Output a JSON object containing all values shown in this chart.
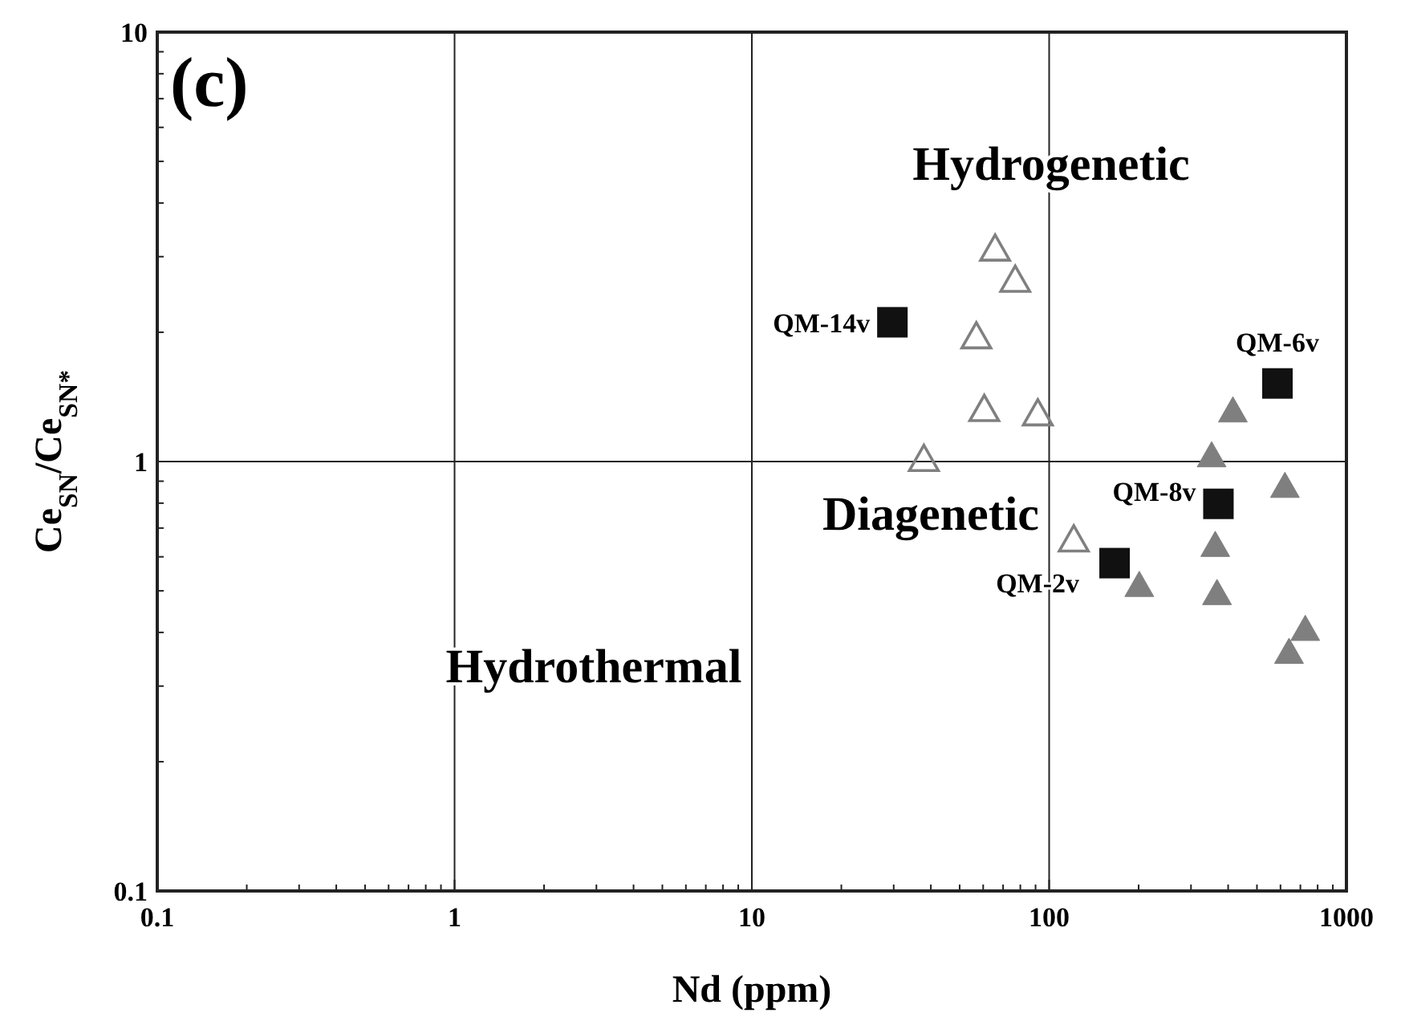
{
  "chart_data": {
    "type": "scatter",
    "title": "(c)",
    "xlabel": "Nd (ppm)",
    "ylabel": "Ce$_{SN}$/Ce$_{SN*}$",
    "log": "xy",
    "grid": true,
    "xlim": [
      0.1,
      1000
    ],
    "ylim": [
      0.1,
      10
    ],
    "xticks": [
      0.1,
      {
        "value": 0.2,
        "label": null
      },
      {
        "value": 0.3,
        "label": null
      },
      {
        "value": 0.4,
        "label": null
      },
      {
        "value": 0.5,
        "label": null
      },
      {
        "value": 0.6,
        "label": null
      },
      {
        "value": 0.7,
        "label": null
      },
      {
        "value": 0.8,
        "label": null
      },
      {
        "value": 0.9,
        "label": null
      },
      1,
      {
        "value": 2,
        "label": null
      },
      {
        "value": 3,
        "label": null
      },
      {
        "value": 4,
        "label": null
      },
      {
        "value": 5,
        "label": null
      },
      {
        "value": 6,
        "label": null
      },
      {
        "value": 7,
        "label": null
      },
      {
        "value": 8,
        "label": null
      },
      {
        "value": 9,
        "label": null
      },
      10,
      {
        "value": 20,
        "label": null
      },
      {
        "value": 30,
        "label": null
      },
      {
        "value": 40,
        "label": null
      },
      {
        "value": 50,
        "label": null
      },
      {
        "value": 60,
        "label": null
      },
      {
        "value": 70,
        "label": null
      },
      {
        "value": 80,
        "label": null
      },
      {
        "value": 90,
        "label": null
      },
      100,
      {
        "value": 200,
        "label": null
      },
      {
        "value": 300,
        "label": null
      },
      {
        "value": 400,
        "label": null
      },
      {
        "value": 500,
        "label": null
      },
      {
        "value": 600,
        "label": null
      },
      {
        "value": 700,
        "label": null
      },
      {
        "value": 800,
        "label": null
      },
      {
        "value": 900,
        "label": null
      },
      1000
    ],
    "yticks": [
      0.1,
      {
        "value": 0.2,
        "label": null
      },
      {
        "value": 0.3,
        "label": null
      },
      {
        "value": 0.4,
        "label": null
      },
      {
        "value": 0.5,
        "label": null
      },
      {
        "value": 0.6,
        "label": null
      },
      {
        "value": 0.7,
        "label": null
      },
      {
        "value": 0.8,
        "label": null
      },
      {
        "value": 0.9,
        "label": null
      },
      1,
      {
        "value": 2,
        "label": null
      },
      {
        "value": 3,
        "label": null
      },
      {
        "value": 4,
        "label": null
      },
      {
        "value": 5,
        "label": null
      },
      {
        "value": 6,
        "label": null
      },
      {
        "value": 7,
        "label": null
      },
      {
        "value": 8,
        "label": null
      },
      {
        "value": 9,
        "label": null
      },
      10
    ],
    "series": [
      {
        "marker": "triangle",
        "color": "#808080",
        "x": [
          65.8,
          76.9,
          56.9,
          60.5,
          91.6,
          37.9,
          121
        ],
        "values": [
          3.12,
          2.64,
          1.95,
          1.32,
          1.29,
          1.01,
          0.656
        ]
      },
      {
        "marker": "triangle",
        "color": "#7f7f7f",
        "x": [
          415,
          352,
          621,
          362,
          201,
          367,
          727,
          641
        ],
        "values": [
          1.31,
          1.03,
          0.874,
          0.637,
          0.514,
          0.492,
          0.406,
          0.359
        ]
      },
      {
        "marker": "square",
        "color": "#111111",
        "x": [
          29.7,
          586,
          371,
          166
        ],
        "values": [
          2.11,
          1.52,
          0.797,
          0.58
        ]
      }
    ],
    "annotations": [
      "Hydrogenetic",
      "Diagenetic",
      "Hydrothermal",
      {
        "text": "QM-14v",
        "x": 29.7,
        "y": 2.11
      },
      {
        "text": "QM-6v",
        "x": 586,
        "y": 1.52
      },
      {
        "text": "QM-8v",
        "x": 371,
        "y": 0.797
      },
      {
        "text": "QM-2v",
        "x": 166,
        "y": 0.58
      }
    ]
  }
}
